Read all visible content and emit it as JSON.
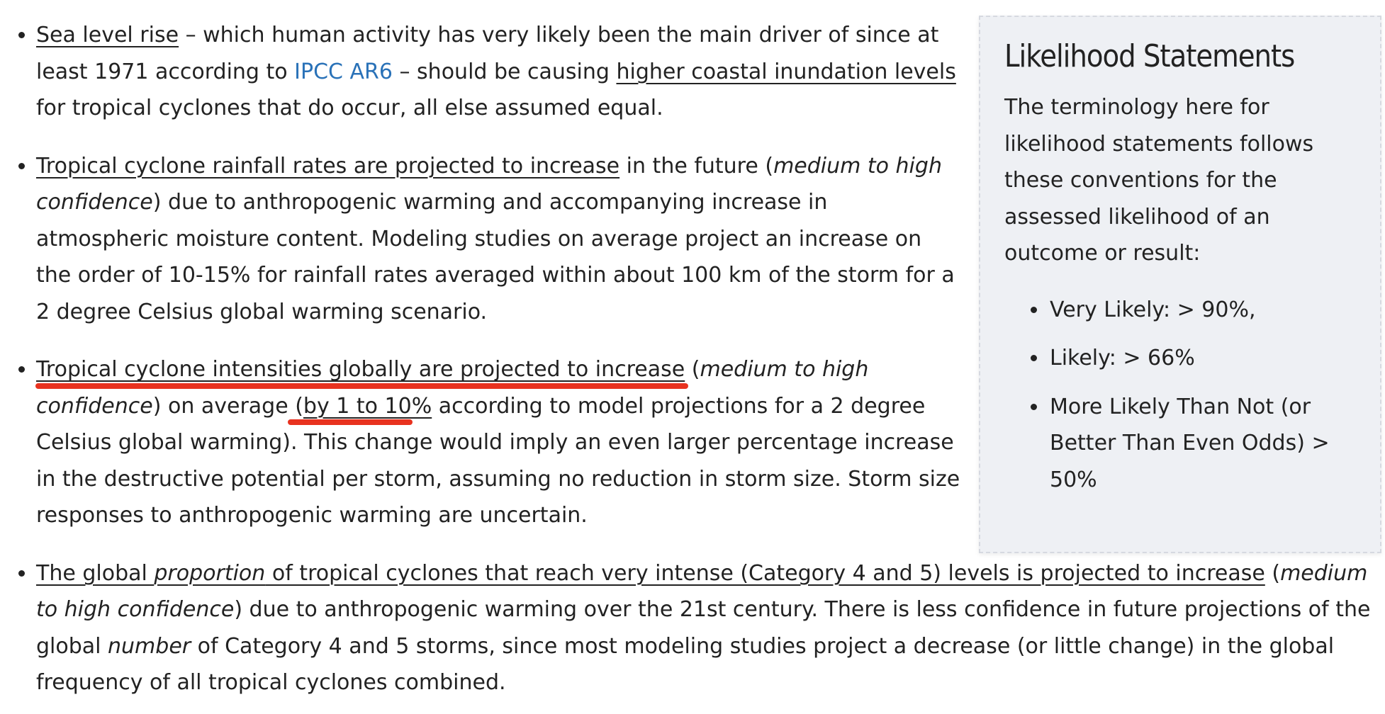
{
  "bullets": {
    "sea_level": {
      "link_text": "Sea level rise",
      "text_a": " – which human activity has very likely been the main driver of since at least 1971 according to ",
      "ipcc_link": "IPCC AR6",
      "text_b": " – should be causing ",
      "underlined": "higher coastal inundation levels",
      "text_c": " for tropical cyclones that do occur, all else assumed equal."
    },
    "rainfall": {
      "underlined": "Tropical cyclone rainfall rates are projected to increase",
      "text_a": " in the future (",
      "confidence": "medium to high confidence",
      "text_b": ") due to anthropogenic warming and accompanying increase in atmospheric moisture content. Modeling studies on average project an increase on the order of 10-15% for rainfall rates averaged within about 100 km of the storm for a 2 degree Celsius global warming scenario."
    },
    "intensity": {
      "underlined": "Tropical cyclone intensities globally are projected to increase",
      "text_a": " (",
      "confidence": "medium to high confidence",
      "text_b": ") on average (",
      "range": "by 1 to 10%",
      "text_c": " according to model projections for a 2 degree Celsius global warming). This change would imply an even larger percentage increase in the destructive potential per storm, assuming no reduction in storm size. Storm size responses to anthropogenic warming are uncertain."
    },
    "proportion": {
      "u_part1": "The global ",
      "u_italic": "proportion",
      "u_part2": " of tropical cyclones that reach very intense (Category 4 and 5) levels is projected to increase",
      "text_a": " (",
      "confidence": "medium to high confidence",
      "text_b": ") due to anthropogenic warming over the 21st century. There is less confidence in future projections of the global ",
      "italic_number": "number",
      "text_c": " of Category 4 and 5 storms, since most modeling studies project a decrease (or little change) in the global frequency of all tropical cyclones combined."
    }
  },
  "sidebar": {
    "title": "Likelihood Statements",
    "intro": "The terminology here for likelihood statements follows these conventions for the assessed likelihood of an outcome or result:",
    "items": [
      "Very Likely: > 90%,",
      "Likely: > 66%",
      "More Likely Than Not (or Better Than Even Odds) > 50%"
    ]
  },
  "colors": {
    "link": "#2a72b8",
    "annotation_mark": "#e8321f",
    "sidebar_bg": "#eef0f4"
  }
}
